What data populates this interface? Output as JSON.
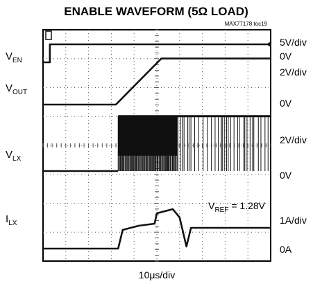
{
  "chart_data": {
    "type": "line",
    "title": "ENABLE WAVEFORM (5Ω LOAD)",
    "figure_id": "MAX77178 toc19",
    "xlabel": "10μs/div",
    "x_divisions": 10,
    "y_divisions": 8,
    "x_unit_per_div": "10μs",
    "grid": true,
    "annotation": {
      "pre": "V",
      "sub": "REF",
      "post": " = 1.28V"
    },
    "channels": [
      {
        "name_main": "V",
        "name_sub": "EN",
        "scale": "5V/div",
        "zero_label": "0V",
        "trace": [
          [
            0,
            0
          ],
          [
            0.3,
            0
          ],
          [
            0.3,
            1
          ],
          [
            10,
            1
          ]
        ]
      },
      {
        "name_main": "V",
        "name_sub": "OUT",
        "scale": "2V/div",
        "zero_label": "0V",
        "trace": [
          [
            0,
            0
          ],
          [
            3.2,
            0
          ],
          [
            5.2,
            1.28
          ],
          [
            10,
            1.28
          ]
        ]
      },
      {
        "name_main": "V",
        "name_sub": "LX",
        "scale": "2V/div",
        "zero_label": "0V",
        "switching": {
          "start": 3.3,
          "end": 10,
          "high": 1.65,
          "low": 0
        },
        "trace": [
          [
            0,
            0
          ],
          [
            3.3,
            0
          ]
        ]
      },
      {
        "name_main": "I",
        "name_sub": "LX",
        "scale": "1A/div",
        "zero_label": "0A",
        "trace": [
          [
            0,
            0
          ],
          [
            3.3,
            0
          ],
          [
            3.5,
            0.45
          ],
          [
            4.2,
            0.55
          ],
          [
            4.9,
            0.6
          ],
          [
            5.0,
            0.85
          ],
          [
            5.7,
            0.95
          ],
          [
            6.0,
            0.75
          ],
          [
            6.3,
            0.05
          ],
          [
            6.5,
            0.5
          ],
          [
            10,
            0.5
          ]
        ]
      }
    ]
  }
}
